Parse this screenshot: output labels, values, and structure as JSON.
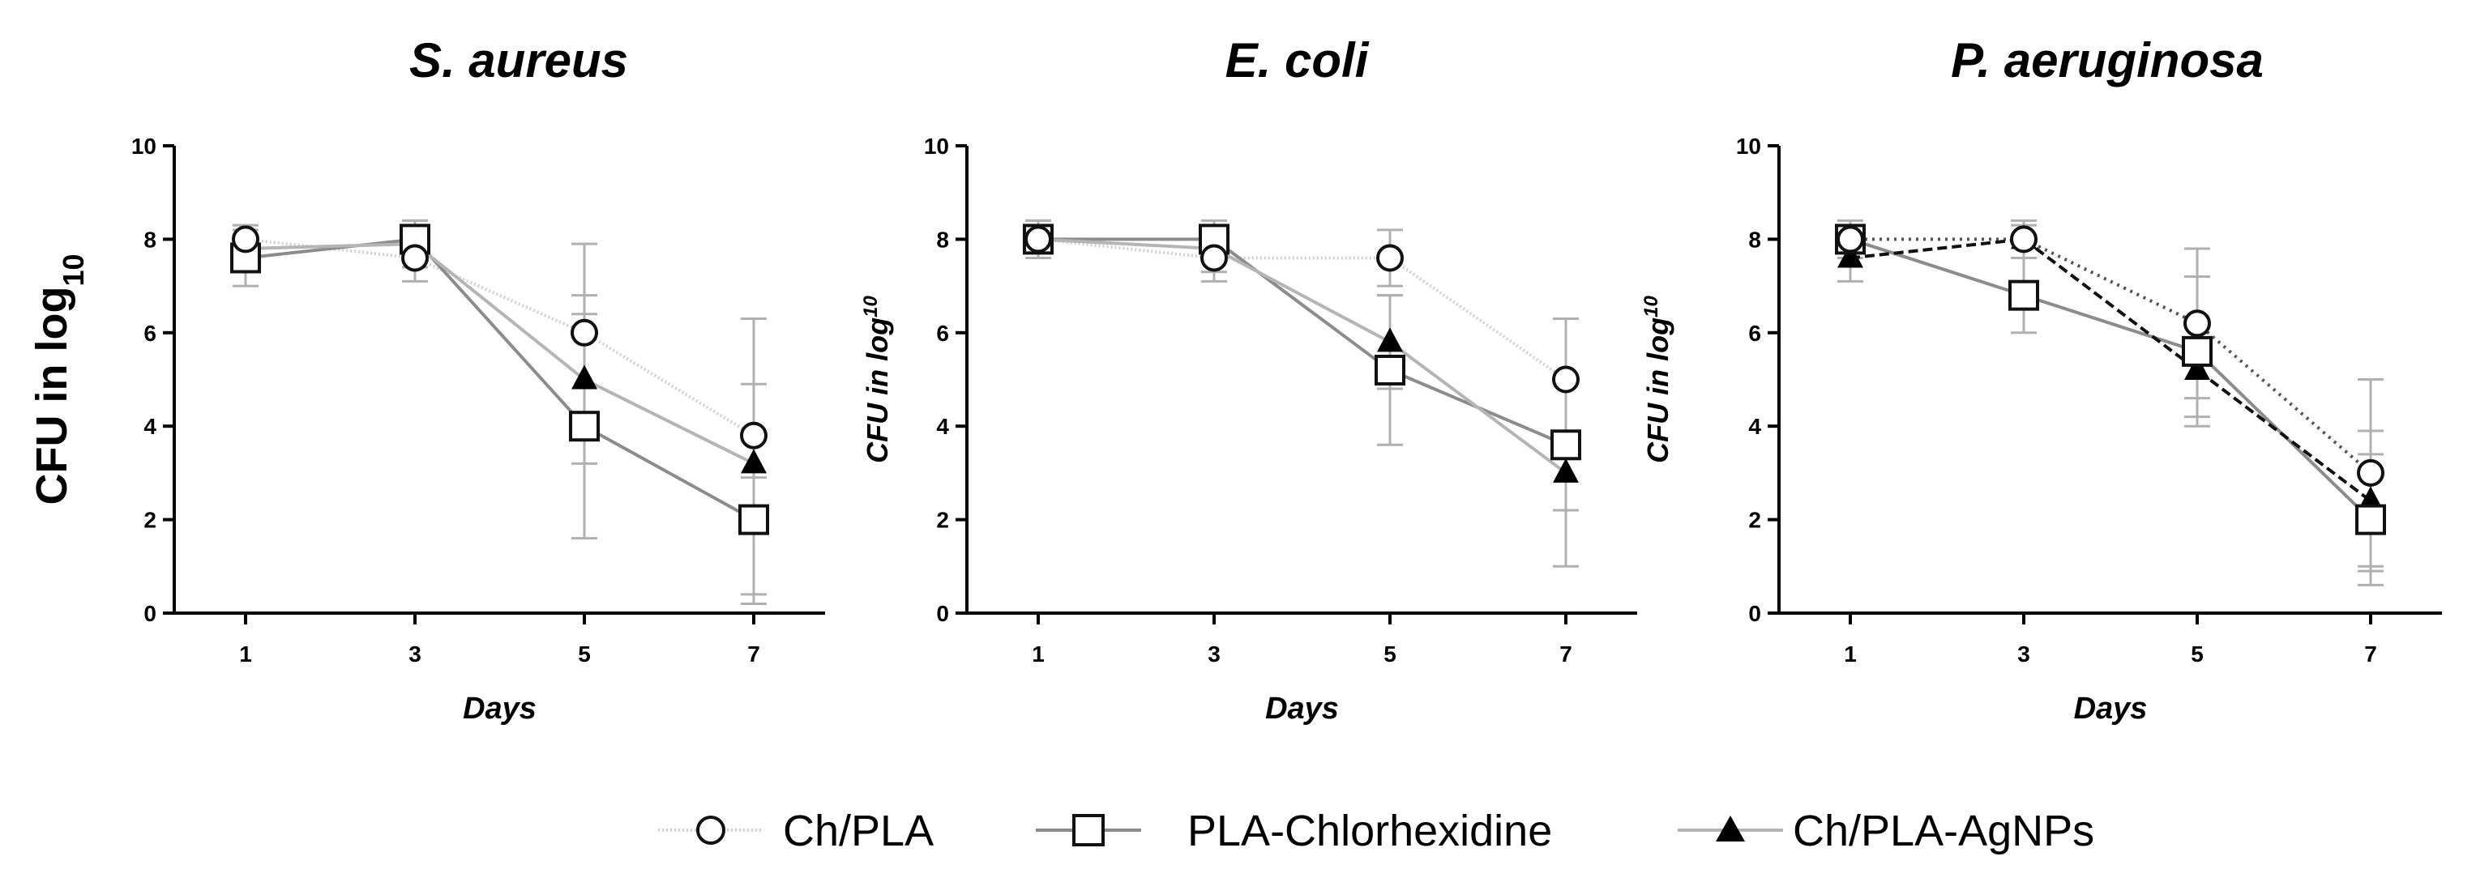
{
  "legend": {
    "items": [
      {
        "label": "Ch/PLA",
        "marker": "circle"
      },
      {
        "label": "PLA-Chlorhexidine",
        "marker": "square"
      },
      {
        "label": "Ch/PLA-AgNPs",
        "marker": "triangle"
      }
    ]
  },
  "chart_data": [
    {
      "type": "line",
      "title": "S. aureus",
      "xlabel": "Days",
      "ylabel": "CFU in log",
      "ylabel_sub": "10",
      "x": [
        1,
        3,
        5,
        7
      ],
      "x_ticks": [
        "1",
        "3",
        "5",
        "7"
      ],
      "y_ticks": [
        "0",
        "2",
        "4",
        "6",
        "8",
        "10"
      ],
      "ylim": [
        0,
        10
      ],
      "series": [
        {
          "name": "Ch/PLA",
          "marker": "circle",
          "line_color": "#d0d0d0",
          "dash": "2,3",
          "values": [
            8.0,
            7.6,
            6.0,
            3.8
          ],
          "err_low": [
            7.5,
            7.1,
            4.2,
            2.9
          ],
          "err_high": [
            8.3,
            8.1,
            7.9,
            4.9
          ]
        },
        {
          "name": "PLA-Chlorhexidine",
          "marker": "square",
          "line_color": "#8c8c8c",
          "dash": "",
          "values": [
            7.6,
            8.0,
            4.0,
            2.0
          ],
          "err_low": [
            7.0,
            7.6,
            1.6,
            0.2
          ],
          "err_high": [
            8.2,
            8.4,
            6.4,
            3.8
          ]
        },
        {
          "name": "Ch/PLA-AgNPs",
          "marker": "triangle",
          "line_color": "#b5b5b5",
          "dash": "",
          "values": [
            7.8,
            7.9,
            5.0,
            3.2
          ],
          "err_low": [
            7.3,
            7.4,
            3.2,
            0.4
          ],
          "err_high": [
            8.3,
            8.4,
            6.8,
            6.3
          ]
        }
      ]
    },
    {
      "type": "line",
      "title": "E. coli",
      "xlabel": "Days",
      "ylabel": "CFU in log",
      "ylabel_sup": "10",
      "x": [
        1,
        3,
        5,
        7
      ],
      "x_ticks": [
        "1",
        "3",
        "5",
        "7"
      ],
      "y_ticks": [
        "0",
        "2",
        "4",
        "6",
        "8",
        "10"
      ],
      "ylim": [
        0,
        10
      ],
      "series": [
        {
          "name": "Ch/PLA",
          "marker": "circle",
          "line_color": "#d0d0d0",
          "dash": "2,3",
          "values": [
            8.0,
            7.6,
            7.6,
            5.0
          ],
          "err_low": [
            7.6,
            7.1,
            7.0,
            3.8
          ],
          "err_high": [
            8.3,
            8.1,
            8.2,
            6.3
          ]
        },
        {
          "name": "PLA-Chlorhexidine",
          "marker": "square",
          "line_color": "#8c8c8c",
          "dash": "",
          "values": [
            8.0,
            8.0,
            5.2,
            3.6
          ],
          "err_low": [
            7.6,
            7.6,
            3.6,
            2.2
          ],
          "err_high": [
            8.4,
            8.4,
            6.8,
            5.0
          ]
        },
        {
          "name": "Ch/PLA-AgNPs",
          "marker": "triangle",
          "line_color": "#b5b5b5",
          "dash": "",
          "values": [
            8.0,
            7.8,
            5.8,
            3.0
          ],
          "err_low": [
            7.6,
            7.3,
            4.8,
            1.0
          ],
          "err_high": [
            8.4,
            8.3,
            6.8,
            5.0
          ]
        }
      ]
    },
    {
      "type": "line",
      "title": "P. aeruginosa",
      "xlabel": "Days",
      "ylabel": "CFU in log",
      "ylabel_sup": "10",
      "x": [
        1,
        3,
        5,
        7
      ],
      "x_ticks": [
        "1",
        "3",
        "5",
        "7"
      ],
      "y_ticks": [
        "0",
        "2",
        "4",
        "6",
        "8",
        "10"
      ],
      "ylim": [
        0,
        10
      ],
      "series": [
        {
          "name": "Ch/PLA",
          "marker": "circle",
          "line_color": "#555555",
          "dash": "3,6",
          "values": [
            8.0,
            8.0,
            6.2,
            3.0
          ],
          "err_low": [
            7.6,
            7.6,
            4.6,
            1.0
          ],
          "err_high": [
            8.3,
            8.3,
            7.8,
            5.0
          ]
        },
        {
          "name": "PLA-Chlorhexidine",
          "marker": "square",
          "line_color": "#8c8c8c",
          "dash": "",
          "values": [
            8.0,
            6.8,
            5.6,
            2.0
          ],
          "err_low": [
            7.6,
            6.0,
            4.0,
            0.6
          ],
          "err_high": [
            8.4,
            7.6,
            7.2,
            3.4
          ]
        },
        {
          "name": "Ch/PLA-AgNPs",
          "marker": "triangle",
          "line_color": "#111111",
          "dash": "12,6",
          "values": [
            7.6,
            8.0,
            5.2,
            2.4
          ],
          "err_low": [
            7.1,
            7.6,
            4.2,
            0.9
          ],
          "err_high": [
            8.1,
            8.4,
            6.2,
            3.9
          ]
        }
      ]
    }
  ]
}
